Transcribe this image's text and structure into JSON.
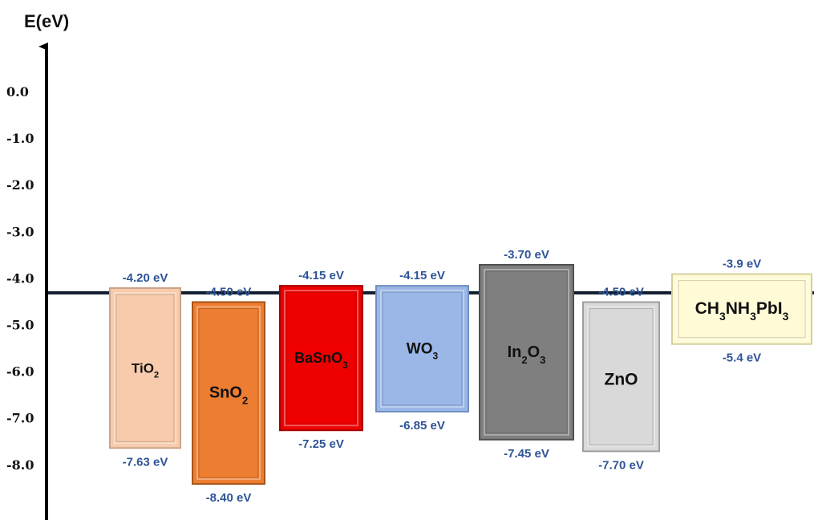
{
  "chart_data": {
    "type": "energy-level-diagram",
    "ylabel": "E(eV)",
    "ylim": [
      -9.1,
      1.0
    ],
    "y_ticks": [
      "0.0",
      "-1.0",
      "-2.0",
      "-3.0",
      "-4.0",
      "-5.0",
      "-6.0",
      "-7.0",
      "-8.0"
    ],
    "y_tick_values": [
      0,
      -1,
      -2,
      -3,
      -4,
      -5,
      -6,
      -7,
      -8
    ],
    "reference_line": -4.3,
    "label_color": "#2E5496",
    "materials": [
      {
        "name": "TiO",
        "sub": "2",
        "tail": "",
        "top": -4.2,
        "bottom": -7.63,
        "top_label": "-4.20 eV",
        "bottom_label": "-7.63 eV",
        "fill": "#F8CBAD",
        "edge": "#C9A38A",
        "name_color": "#111111"
      },
      {
        "name": "SnO",
        "sub": "2",
        "tail": "",
        "top": -4.5,
        "bottom": -8.4,
        "top_label": "-4.50 eV",
        "bottom_label": "-8.40 eV",
        "fill": "#ED7D31",
        "edge": "#A85418",
        "name_color": "#111111"
      },
      {
        "name": "BaSnO",
        "sub": "3",
        "tail": "",
        "top": -4.15,
        "bottom": -7.25,
        "top_label": "-4.15 eV",
        "bottom_label": "-7.25 eV",
        "fill": "#EE0000",
        "edge": "#A80000",
        "name_color": "#111111"
      },
      {
        "name": "WO",
        "sub": "3",
        "tail": "",
        "top": -4.15,
        "bottom": -6.85,
        "top_label": "-4.15 eV",
        "bottom_label": "-6.85 eV",
        "fill": "#9AB7E8",
        "edge": "#6F8FC4",
        "name_color": "#111111"
      },
      {
        "name": "In",
        "sub": "2",
        "tail": "O",
        "sub2": "3",
        "top": -3.7,
        "bottom": -7.45,
        "top_label": "-3.70 eV",
        "bottom_label": "-7.45 eV",
        "fill": "#7F7F7F",
        "edge": "#4F4F4F",
        "name_color": "#111111"
      },
      {
        "name": "ZnO",
        "sub": "",
        "tail": "",
        "top": -4.5,
        "bottom": -7.7,
        "top_label": "-4.50 eV",
        "bottom_label": "-7.70 eV",
        "fill": "#D9D9D9",
        "edge": "#9F9F9F",
        "name_color": "#111111"
      },
      {
        "name": "CH",
        "sub": "3",
        "tail": "NH",
        "sub2": "3",
        "tail2": "PbI",
        "sub3": "3",
        "top": -3.9,
        "bottom": -5.4,
        "top_label": "-3.9 eV",
        "bottom_label": "-5.4 eV",
        "fill": "#FFFBD6",
        "edge": "#D6CFA0",
        "name_color": "#111111"
      }
    ]
  }
}
